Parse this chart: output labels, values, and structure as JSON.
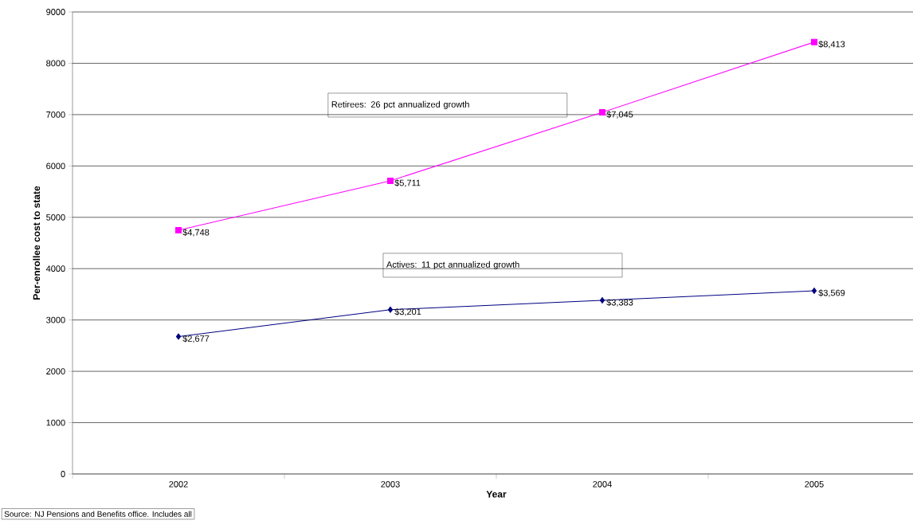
{
  "chart_data": {
    "type": "line",
    "xlabel": "Year",
    "ylabel": "Per-enrollee cost to state",
    "categories": [
      "2002",
      "2003",
      "2004",
      "2005"
    ],
    "series": [
      {
        "color": "#ff00ff",
        "marker": "square",
        "values": [
          4748,
          5711,
          7045,
          8413
        ],
        "value_labels": [
          "$4,748",
          "$5,711",
          "$7,045",
          "$8,413"
        ]
      },
      {
        "color": "#000080",
        "marker": "diamond",
        "values": [
          2677,
          3201,
          3383,
          3569
        ],
        "value_labels": [
          "$2,677",
          "$3,201",
          "$3,383",
          "$3,569"
        ]
      }
    ],
    "ylim": [
      0,
      9000
    ],
    "yticks": [
      0,
      1000,
      2000,
      3000,
      4000,
      5000,
      6000,
      7000,
      8000,
      9000
    ],
    "grid": "y",
    "annotations": [
      "Retirees: 26 pct annualized growth",
      "Actives: 11 pct annualized growth",
      "Source: NJ Pensions and Benefits office. Includes all"
    ]
  }
}
